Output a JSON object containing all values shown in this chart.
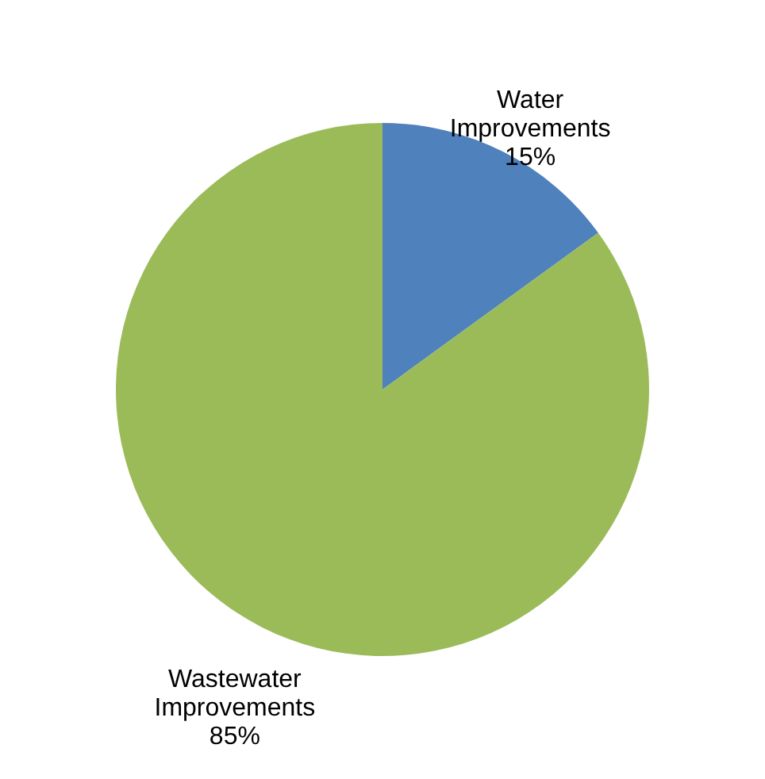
{
  "chart_data": {
    "type": "pie",
    "categories": [
      "Water Improvements",
      "Wastewater Improvements"
    ],
    "values": [
      15,
      85
    ],
    "colors": [
      "#4f81bd",
      "#9bbb59"
    ],
    "value_labels": [
      "15%",
      "85%"
    ],
    "legend": false
  }
}
